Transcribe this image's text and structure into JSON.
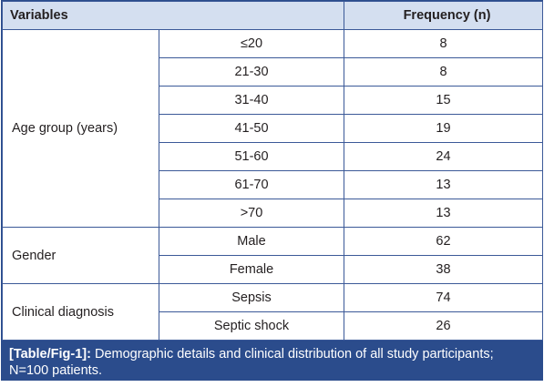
{
  "table": {
    "headers": {
      "variables": "Variables",
      "frequency": "Frequency (n)"
    },
    "groups": [
      {
        "label": "Age group (years)",
        "rows": [
          {
            "sub": "≤20",
            "value": "8"
          },
          {
            "sub": "21-30",
            "value": "8"
          },
          {
            "sub": "31-40",
            "value": "15"
          },
          {
            "sub": "41-50",
            "value": "19"
          },
          {
            "sub": "51-60",
            "value": "24"
          },
          {
            "sub": "61-70",
            "value": "13"
          },
          {
            "sub": ">70",
            "value": "13"
          }
        ]
      },
      {
        "label": "Gender",
        "rows": [
          {
            "sub": "Male",
            "value": "62"
          },
          {
            "sub": "Female",
            "value": "38"
          }
        ]
      },
      {
        "label": "Clinical diagnosis",
        "rows": [
          {
            "sub": "Sepsis",
            "value": "74"
          },
          {
            "sub": "Septic shock",
            "value": "26"
          }
        ]
      }
    ]
  },
  "caption": {
    "ref": "[Table/Fig-1]:",
    "text": " Demographic details and clinical distribution of all study participants; N=100 patients."
  },
  "colors": {
    "header_bg": "#d4dff0",
    "border": "#3b5998",
    "caption_bg": "#2b4c8c"
  }
}
